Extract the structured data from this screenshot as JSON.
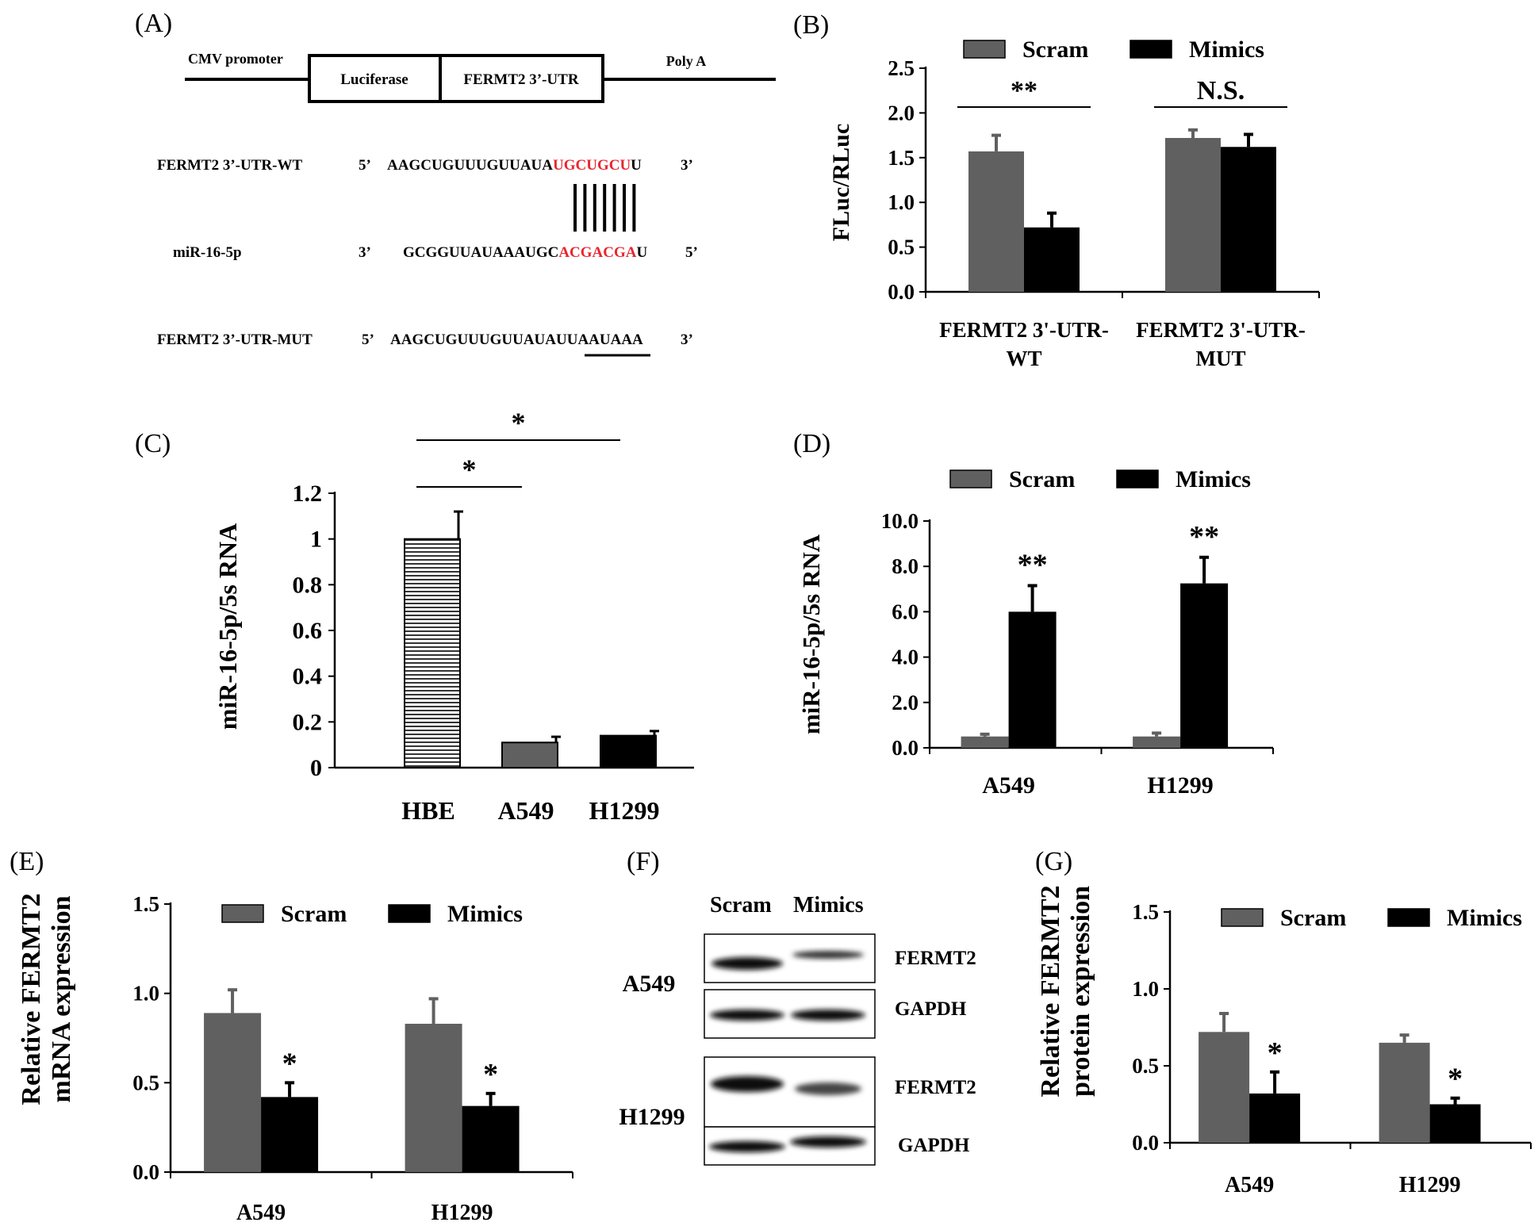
{
  "colors": {
    "scram": "#606060",
    "mimics": "#000000",
    "seed_red": "#e8262e",
    "axis": "#000000"
  },
  "panelA": {
    "label": "(A)",
    "construct": {
      "promoter": "CMV promoter",
      "reporter": "Luciferase",
      "utr": "FERMT2 3’-UTR",
      "polya": "Poly A"
    },
    "wt": {
      "name": "FERMT2 3’-UTR-WT",
      "end5": "5’",
      "seq_pre": "AAGCUGUUUGUUAUA",
      "seq_seed": "UGCUGCU",
      "seq_post": "U",
      "end3": "3’"
    },
    "mir": {
      "name": "miR-16-5p",
      "end3": "3’",
      "seq_pre": "GCGGUUAUAAAUGC",
      "seq_seed": "ACGACGA",
      "seq_post": "U",
      "end5": "5’"
    },
    "mut": {
      "name": "FERMT2 3’-UTR-MUT",
      "end5": "5’",
      "seq_pre": "AAGCUGUUUGUUAUAU",
      "seq_mut": "UAAUAAA",
      "end3": "3’"
    }
  },
  "panelF": {
    "label": "(F)",
    "columns": [
      "Scram",
      "Mimics"
    ],
    "blots": [
      {
        "cell": "A549",
        "bands": [
          "FERMT2",
          "GAPDH"
        ]
      },
      {
        "cell": "H1299",
        "bands": [
          "FERMT2",
          "GAPDH"
        ]
      }
    ]
  },
  "chart_data": [
    {
      "panel": "(B)",
      "type": "bar",
      "title": "",
      "xlabel": "",
      "ylabel": "FLuc/RLuc",
      "categories": [
        "FERMT2 3'-UTR-WT",
        "FERMT2 3'-UTR-MUT"
      ],
      "category_lines": [
        [
          "FERMT2 3'-UTR-",
          "WT"
        ],
        [
          "FERMT2 3'-UTR-",
          "MUT"
        ]
      ],
      "series": [
        {
          "name": "Scram",
          "values": [
            1.57,
            1.72
          ],
          "errors": [
            0.18,
            0.09
          ]
        },
        {
          "name": "Mimics",
          "values": [
            0.72,
            1.62
          ],
          "errors": [
            0.16,
            0.14
          ]
        }
      ],
      "ylim": [
        0,
        2.5
      ],
      "yticks": [
        "0.0",
        "0.5",
        "1.0",
        "1.5",
        "2.0",
        "2.5"
      ],
      "significance": [
        "**",
        "N.S."
      ],
      "legend": "top"
    },
    {
      "panel": "(C)",
      "type": "bar",
      "title": "",
      "xlabel": "",
      "ylabel": "miR-16-5p/5s RNA",
      "categories": [
        "HBE",
        "A549",
        "H1299"
      ],
      "values": [
        1.0,
        0.11,
        0.14
      ],
      "errors": [
        0.12,
        0.025,
        0.02
      ],
      "fills": [
        "hatched",
        "gray",
        "black"
      ],
      "ylim": [
        0,
        1.2
      ],
      "yticks": [
        "0",
        "0.2",
        "0.4",
        "0.6",
        "0.8",
        "1",
        "1.2"
      ],
      "comparisons": [
        {
          "from": "HBE",
          "to": "A549",
          "label": "*"
        },
        {
          "from": "HBE",
          "to": "H1299",
          "label": "*"
        }
      ]
    },
    {
      "panel": "(D)",
      "type": "bar",
      "title": "",
      "xlabel": "",
      "ylabel": "miR-16-5p/5s RNA",
      "categories": [
        "A549",
        "H1299"
      ],
      "series": [
        {
          "name": "Scram",
          "values": [
            0.5,
            0.5
          ],
          "errors": [
            0.1,
            0.15
          ]
        },
        {
          "name": "Mimics",
          "values": [
            6.0,
            7.25
          ],
          "errors": [
            1.15,
            1.15
          ]
        }
      ],
      "ylim": [
        0,
        10
      ],
      "yticks": [
        "0.0",
        "2.0",
        "4.0",
        "6.0",
        "8.0",
        "10.0"
      ],
      "significance": [
        "**",
        "**"
      ],
      "legend": "top"
    },
    {
      "panel": "(E)",
      "type": "bar",
      "title": "",
      "xlabel": "",
      "ylabel": "Relative FERMT2 mRNA expression",
      "ylabel_lines": [
        "Relative FERMT2",
        "mRNA expression"
      ],
      "categories": [
        "A549",
        "H1299"
      ],
      "series": [
        {
          "name": "Scram",
          "values": [
            0.89,
            0.83
          ],
          "errors": [
            0.13,
            0.14
          ]
        },
        {
          "name": "Mimics",
          "values": [
            0.42,
            0.37
          ],
          "errors": [
            0.08,
            0.07
          ]
        }
      ],
      "ylim": [
        0,
        1.5
      ],
      "yticks": [
        "0.0",
        "0.5",
        "1.0",
        "1.5"
      ],
      "significance": [
        "*",
        "*"
      ],
      "legend": "top"
    },
    {
      "panel": "(G)",
      "type": "bar",
      "title": "",
      "xlabel": "",
      "ylabel": "Relative FERMT2 protein expression",
      "ylabel_lines": [
        "Relative FERMT2",
        "protein expression"
      ],
      "categories": [
        "A549",
        "H1299"
      ],
      "series": [
        {
          "name": "Scram",
          "values": [
            0.72,
            0.65
          ],
          "errors": [
            0.12,
            0.05
          ]
        },
        {
          "name": "Mimics",
          "values": [
            0.32,
            0.25
          ],
          "errors": [
            0.14,
            0.04
          ]
        }
      ],
      "ylim": [
        0,
        1.5
      ],
      "yticks": [
        "0.0",
        "0.5",
        "1.0",
        "1.5"
      ],
      "significance": [
        "*",
        "*"
      ],
      "legend": "top"
    }
  ]
}
